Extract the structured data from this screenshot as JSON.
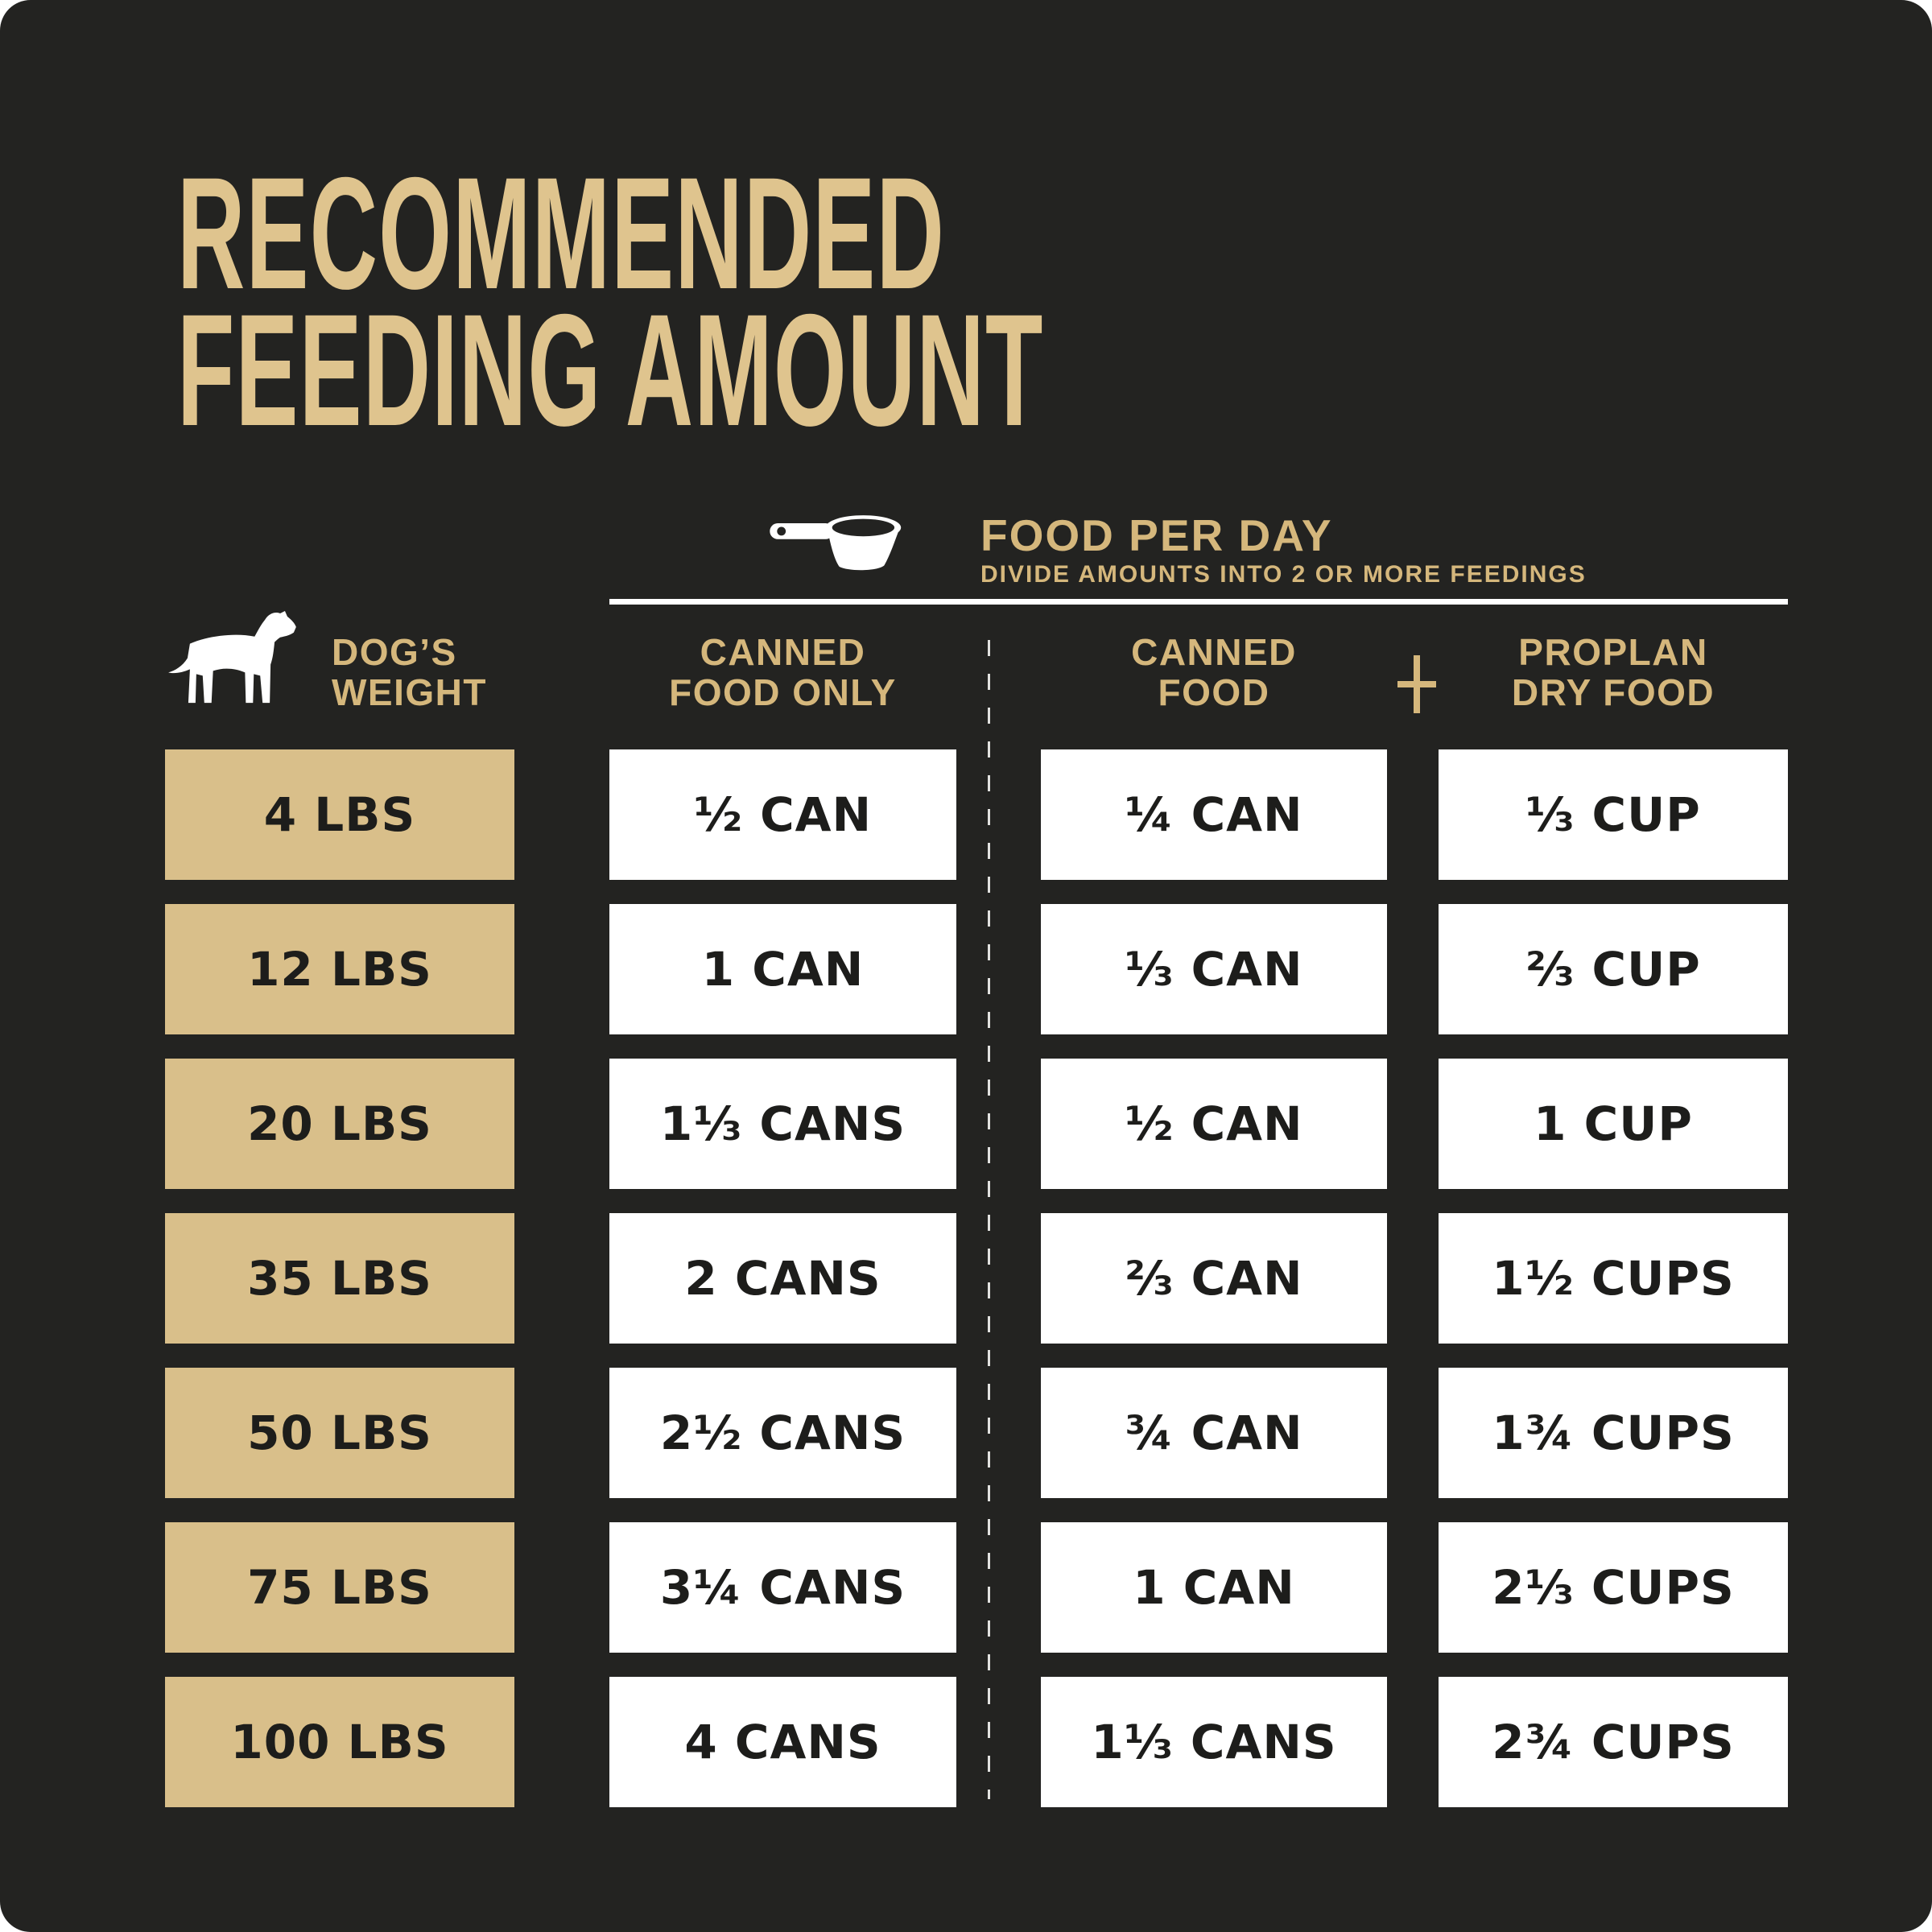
{
  "title": {
    "line1": "RECOMMENDED",
    "line2": "FEEDING AMOUNT"
  },
  "food_per_day": {
    "heading": "FOOD PER DAY",
    "subheading": "DIVIDE AMOUNTS INTO 2 OR MORE FEEDINGS",
    "icon": "measuring-cup-icon"
  },
  "columns": {
    "weight": {
      "line1": "DOG’S",
      "line2": "WEIGHT",
      "icon": "dog-icon"
    },
    "canned_only": {
      "line1": "CANNED",
      "line2": "FOOD ONLY"
    },
    "canned": {
      "line1": "CANNED",
      "line2": "FOOD"
    },
    "plus": "+",
    "dry": {
      "line1": "PROPLAN",
      "line2": "DRY FOOD"
    }
  },
  "chart_data": {
    "type": "table",
    "title": "RECOMMENDED FEEDING AMOUNT",
    "note": "FOOD PER DAY — DIVIDE AMOUNTS INTO 2 OR MORE FEEDINGS",
    "columns": [
      "DOG'S WEIGHT",
      "CANNED FOOD ONLY",
      "CANNED FOOD",
      "PROPLAN DRY FOOD"
    ],
    "rows": [
      [
        "4 LBS",
        "½ CAN",
        "¼ CAN",
        "⅓ CUP"
      ],
      [
        "12 LBS",
        "1 CAN",
        "⅓ CAN",
        "⅔ CUP"
      ],
      [
        "20 LBS",
        "1⅓ CANS",
        "½ CAN",
        "1 CUP"
      ],
      [
        "35 LBS",
        "2 CANS",
        "⅔ CAN",
        "1½ CUPS"
      ],
      [
        "50 LBS",
        "2½ CANS",
        "¾ CAN",
        "1¾ CUPS"
      ],
      [
        "75 LBS",
        "3¼ CANS",
        "1 CAN",
        "2⅓ CUPS"
      ],
      [
        "100 LBS",
        "4 CANS",
        "1⅓ CANS",
        "2¾ CUPS"
      ]
    ]
  },
  "colors": {
    "panel_background": "#232321",
    "gold_text": "#d5b77c",
    "title_gold": "#dfc48e",
    "tan_cell": "#d9bf8a",
    "value_cell": "#ffffff",
    "cell_text": "#1d1d1b"
  }
}
